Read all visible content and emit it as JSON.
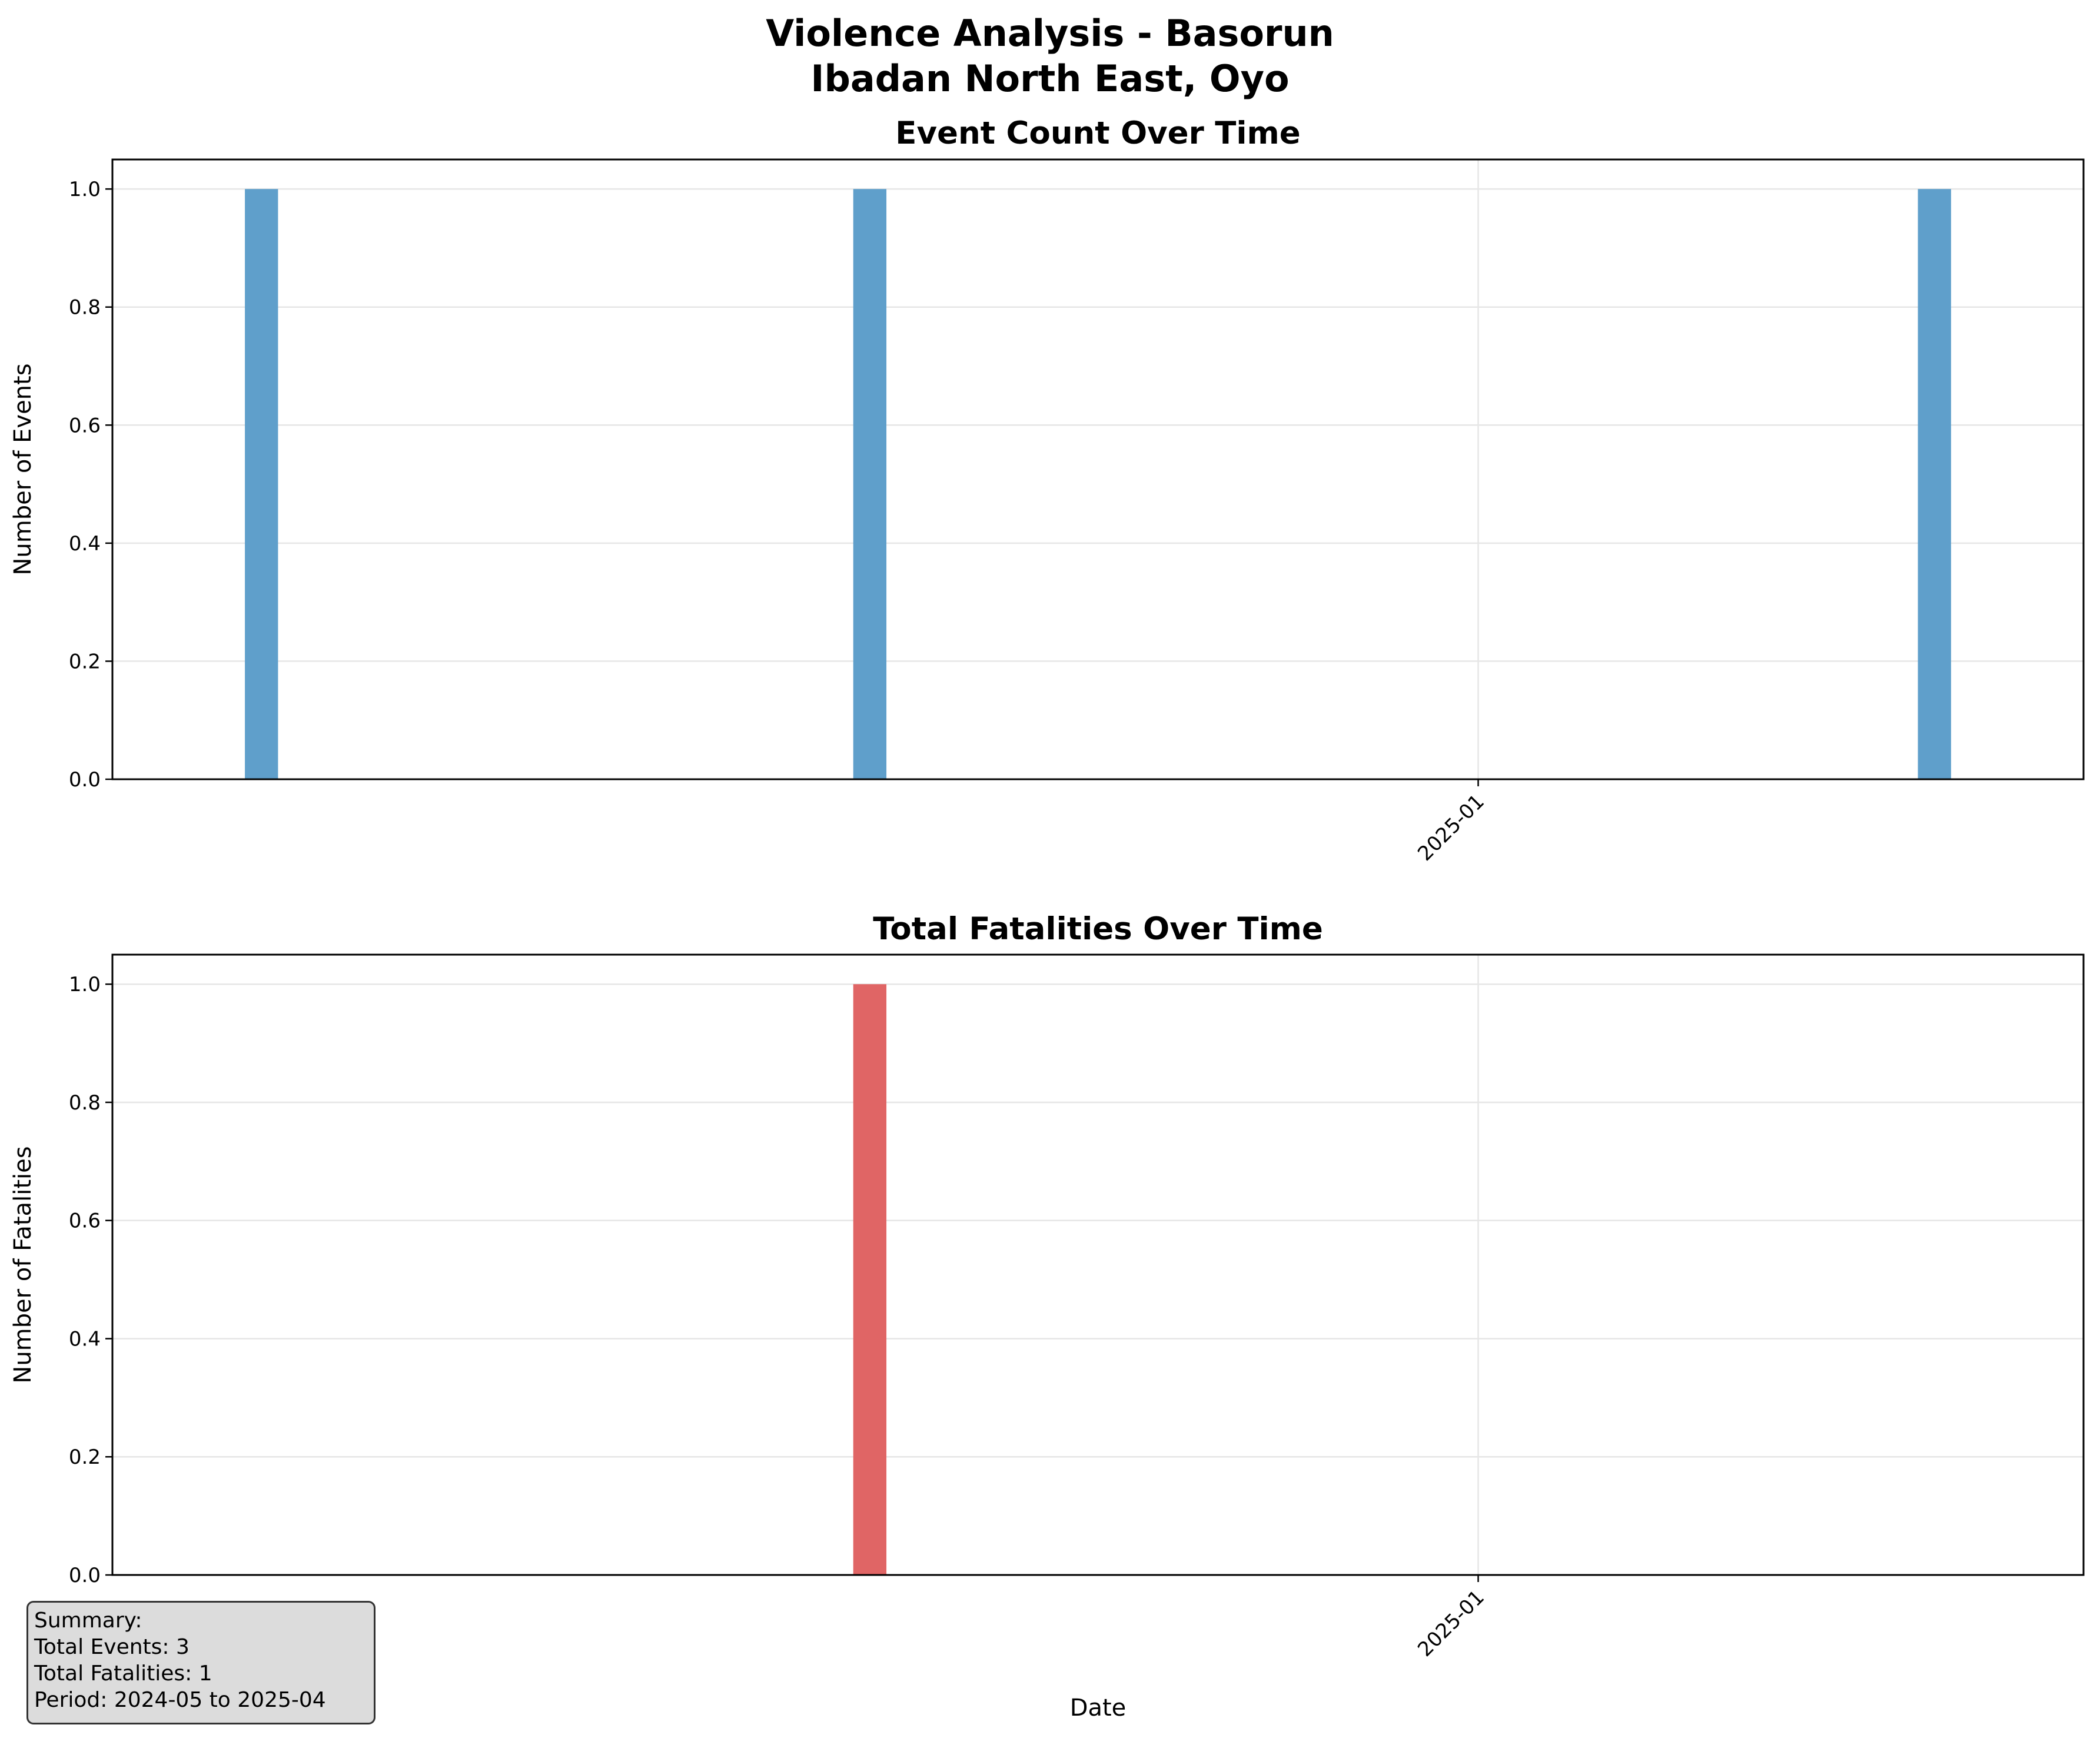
{
  "figure": {
    "title_line1": "Violence Analysis - Basorun",
    "title_line2": "Ibadan North East, Oyo"
  },
  "summary": {
    "heading": "Summary:",
    "total_events": "Total Events: 3",
    "total_fatalities": "Total Fatalities: 1",
    "period": "Period: 2024-05 to 2025-04"
  },
  "colors": {
    "events_bar": "#5f9fcb",
    "fatalities_bar": "#e06565",
    "grid": "#e6e6e6"
  },
  "chart_data": [
    {
      "type": "bar",
      "title": "Event Count Over Time",
      "xlabel": "",
      "ylabel": "Number of Events",
      "x": [
        "2024-05",
        "2024-06",
        "2024-07",
        "2024-08",
        "2024-09",
        "2024-10",
        "2024-11",
        "2024-12",
        "2025-01",
        "2025-02",
        "2025-03",
        "2025-04"
      ],
      "values": [
        1,
        0,
        0,
        0,
        1,
        0,
        0,
        0,
        0,
        0,
        0,
        1
      ],
      "xticks": [
        "2025-01"
      ],
      "ylim": [
        0,
        1.05
      ],
      "yticks": [
        "0.0",
        "0.2",
        "0.4",
        "0.6",
        "0.8",
        "1.0"
      ],
      "grid": true,
      "color": "#5f9fcb"
    },
    {
      "type": "bar",
      "title": "Total Fatalities Over Time",
      "xlabel": "Date",
      "ylabel": "Number of Fatalities",
      "x": [
        "2024-05",
        "2024-06",
        "2024-07",
        "2024-08",
        "2024-09",
        "2024-10",
        "2024-11",
        "2024-12",
        "2025-01",
        "2025-02",
        "2025-03",
        "2025-04"
      ],
      "values": [
        0,
        0,
        0,
        0,
        1,
        0,
        0,
        0,
        0,
        0,
        0,
        0
      ],
      "xticks": [
        "2025-01"
      ],
      "ylim": [
        0,
        1.05
      ],
      "yticks": [
        "0.0",
        "0.2",
        "0.4",
        "0.6",
        "0.8",
        "1.0"
      ],
      "grid": true,
      "color": "#e06565"
    }
  ]
}
